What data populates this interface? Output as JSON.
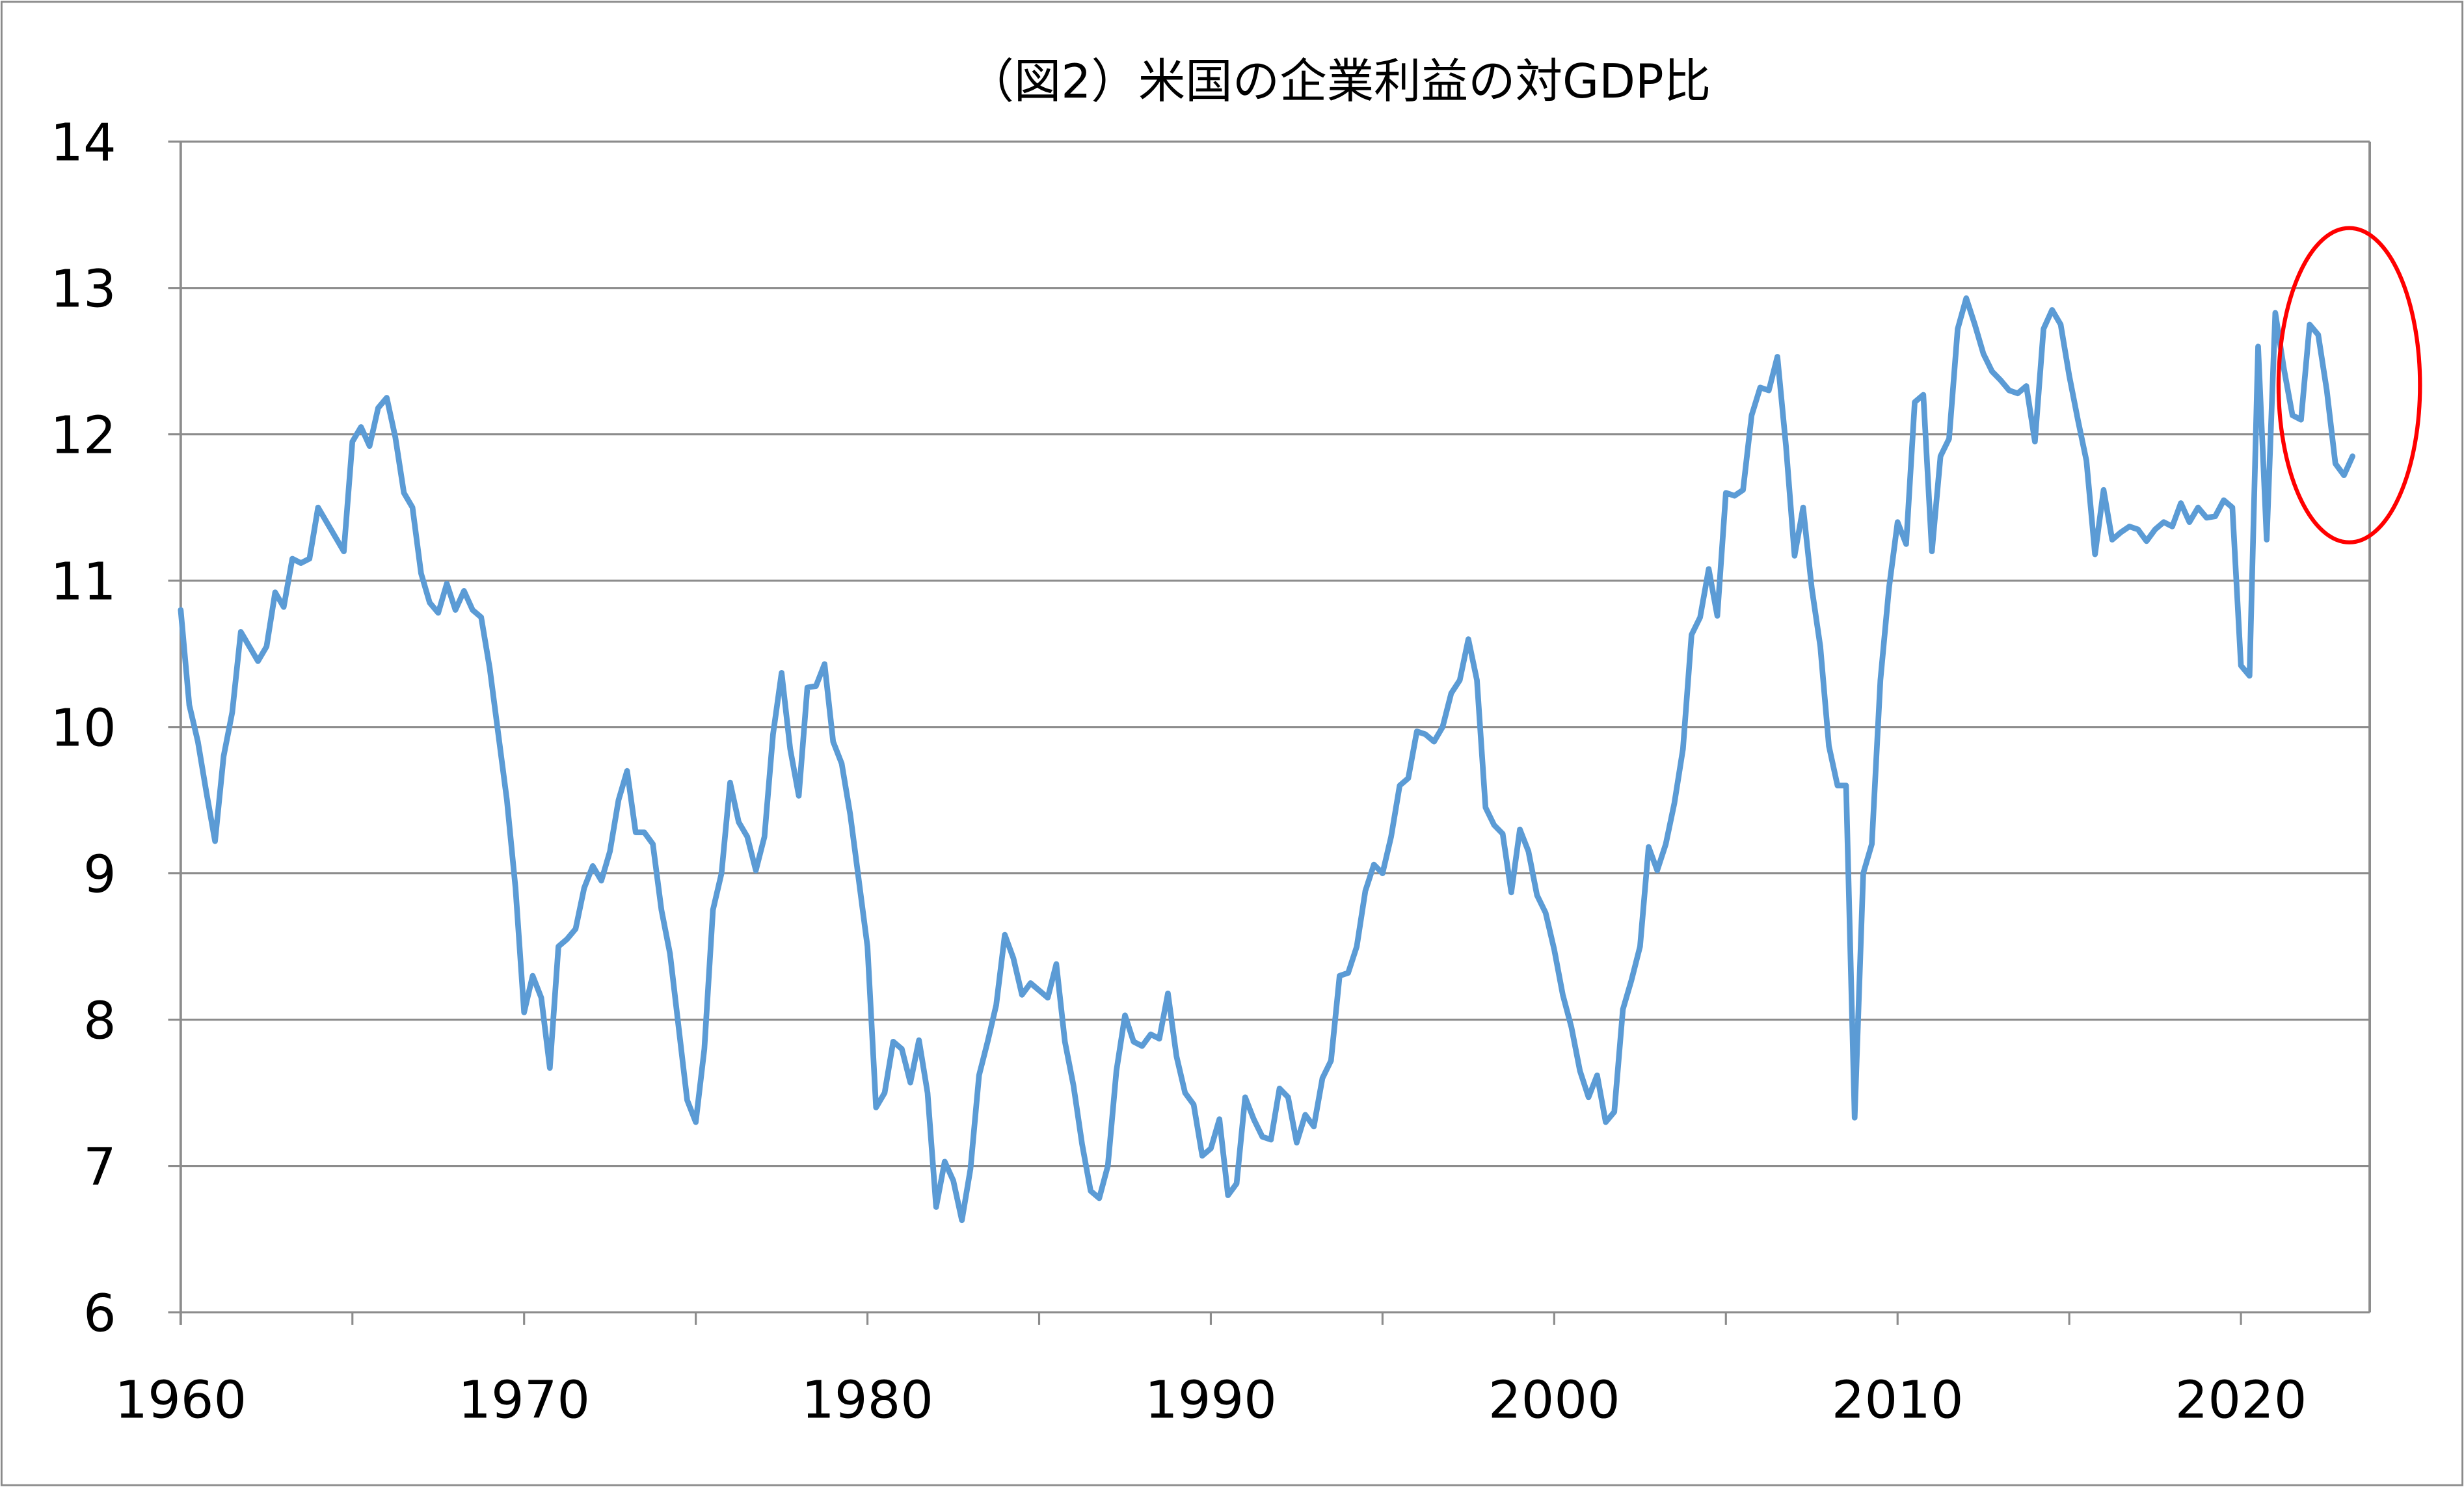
{
  "chart_data": {
    "type": "line",
    "title": "（図2）米国の企業利益の対GDP比",
    "xlabel": "",
    "ylabel": "",
    "frequency": "quarterly",
    "xlim": [
      1960,
      2023.75
    ],
    "ylim": [
      6,
      14
    ],
    "x_ticks": [
      "1960",
      "1970",
      "1980",
      "1990",
      "2000",
      "2010",
      "2020"
    ],
    "y_ticks": [
      "6",
      "7",
      "8",
      "9",
      "10",
      "11",
      "12",
      "13",
      "14"
    ],
    "grid": true,
    "legend": "none",
    "line_color": "#5B9BD5",
    "annotation": {
      "shape": "ellipse",
      "color": "#FF0000",
      "marks": "2021-2023"
    },
    "values_by_year": {
      "1960": [
        10.8,
        10.15,
        9.9,
        9.55
      ],
      "1961": [
        9.22,
        9.8,
        10.1,
        10.65
      ],
      "1962": [
        10.55,
        10.45,
        10.55,
        10.92
      ],
      "1963": [
        10.82,
        11.15,
        11.12,
        11.15
      ],
      "1964": [
        11.5,
        11.4,
        11.3,
        11.2
      ],
      "1965": [
        11.95,
        12.05,
        11.92,
        12.18
      ],
      "1966": [
        12.25,
        11.98,
        11.6,
        11.5
      ],
      "1967": [
        11.05,
        10.85,
        10.78,
        10.98
      ],
      "1968": [
        10.8,
        10.93,
        10.8,
        10.75
      ],
      "1969": [
        10.4,
        9.95,
        9.5,
        8.9
      ],
      "1970": [
        8.05,
        8.3,
        8.15,
        7.67
      ],
      "1971": [
        8.5,
        8.55,
        8.62,
        8.9
      ],
      "1972": [
        9.05,
        8.95,
        9.15,
        9.5
      ],
      "1973": [
        9.7,
        9.28,
        9.28,
        9.2
      ],
      "1974": [
        8.75,
        8.45,
        7.95,
        7.45
      ],
      "1975": [
        7.3,
        7.8,
        8.75,
        9.0
      ],
      "1976": [
        9.62,
        9.35,
        9.25,
        9.02
      ],
      "1977": [
        9.25,
        9.95,
        10.37,
        9.85
      ],
      "1978": [
        9.53,
        10.27,
        10.28,
        10.43
      ],
      "1979": [
        9.9,
        9.75,
        9.4,
        8.95
      ],
      "1980": [
        8.5,
        7.4,
        7.5,
        7.85
      ],
      "1981": [
        7.8,
        7.57,
        7.86,
        7.5
      ],
      "1982": [
        6.72,
        7.03,
        6.9,
        6.63
      ],
      "1983": [
        6.98,
        7.62,
        7.85,
        8.1
      ],
      "1984": [
        8.58,
        8.42,
        8.17,
        8.25
      ],
      "1985": [
        8.2,
        8.15,
        8.38,
        7.85
      ],
      "1986": [
        7.55,
        7.15,
        6.83,
        6.78
      ],
      "1987": [
        7.0,
        7.65,
        8.03,
        7.85
      ],
      "1988": [
        7.82,
        7.9,
        7.87,
        8.18
      ],
      "1989": [
        7.75,
        7.5,
        7.42,
        7.07
      ],
      "1990": [
        7.12,
        7.32,
        6.8,
        6.88
      ],
      "1991": [
        7.47,
        7.32,
        7.2,
        7.18
      ],
      "1992": [
        7.53,
        7.47,
        7.16,
        7.35
      ],
      "1993": [
        7.27,
        7.6,
        7.72,
        8.3
      ],
      "1994": [
        8.32,
        8.5,
        8.88,
        9.06
      ],
      "1995": [
        9.0,
        9.25,
        9.6,
        9.65
      ],
      "1996": [
        9.97,
        9.95,
        9.9,
        10.0
      ],
      "1997": [
        10.23,
        10.32,
        10.6,
        10.32
      ],
      "1998": [
        9.45,
        9.33,
        9.27,
        8.87
      ],
      "1999": [
        9.3,
        9.15,
        8.85,
        8.73
      ],
      "2000": [
        8.48,
        8.17,
        7.95,
        7.65
      ],
      "2001": [
        7.47,
        7.62,
        7.3,
        7.37
      ],
      "2002": [
        8.07,
        8.27,
        8.5,
        9.18
      ],
      "2003": [
        9.02,
        9.2,
        9.48,
        9.85
      ],
      "2004": [
        10.63,
        10.75,
        11.08,
        10.76
      ],
      "2005": [
        11.6,
        11.58,
        11.62,
        12.13
      ],
      "2006": [
        12.32,
        12.3,
        12.53,
        11.92
      ],
      "2007": [
        11.17,
        11.5,
        10.95,
        10.55
      ],
      "2008": [
        9.87,
        9.6,
        9.6,
        7.33
      ],
      "2009": [
        9.0,
        9.2,
        10.32,
        10.95
      ],
      "2010": [
        11.4,
        11.25,
        12.22,
        12.27
      ],
      "2011": [
        11.2,
        11.85,
        11.97,
        12.72
      ],
      "2012": [
        12.93,
        12.75,
        12.55,
        12.43
      ],
      "2013": [
        12.37,
        12.3,
        12.28,
        12.33
      ],
      "2014": [
        11.95,
        12.72,
        12.85,
        12.75
      ],
      "2015": [
        12.4,
        12.1,
        11.82,
        11.18
      ],
      "2016": [
        11.62,
        11.28,
        11.33,
        11.37
      ],
      "2017": [
        11.35,
        11.27,
        11.35,
        11.4
      ],
      "2018": [
        11.37,
        11.53,
        11.4,
        11.5
      ],
      "2019": [
        11.43,
        11.44,
        11.55,
        11.5
      ],
      "2020": [
        10.42,
        10.35,
        12.6,
        11.28
      ],
      "2021": [
        12.83,
        12.45,
        12.13,
        12.1
      ],
      "2022": [
        12.75,
        12.68,
        12.3,
        11.8
      ],
      "2023": [
        11.72,
        11.85
      ]
    }
  }
}
